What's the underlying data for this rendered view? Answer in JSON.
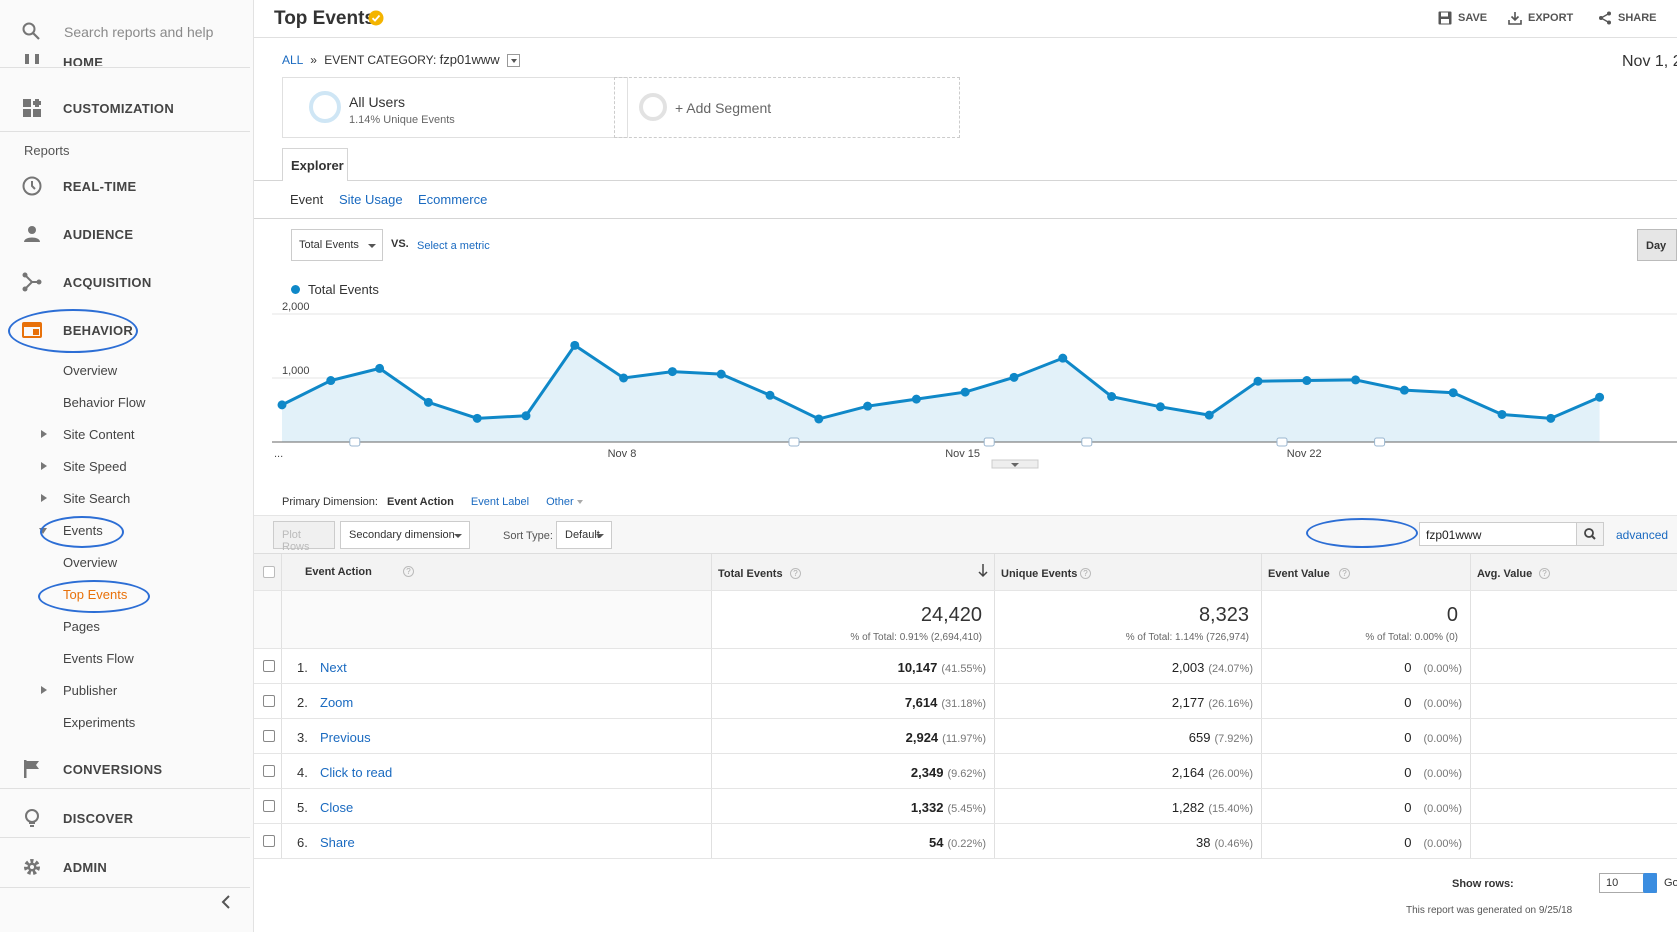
{
  "sidebar": {
    "search_placeholder": "Search reports and help",
    "home": "HOME",
    "customization": "CUSTOMIZATION",
    "reports_label": "Reports",
    "realtime": "REAL-TIME",
    "audience": "AUDIENCE",
    "acquisition": "ACQUISITION",
    "behavior": "BEHAVIOR",
    "behavior_items": {
      "overview": "Overview",
      "behavior_flow": "Behavior Flow",
      "site_content": "Site Content",
      "site_speed": "Site Speed",
      "site_search": "Site Search",
      "events": "Events",
      "events_overview": "Overview",
      "top_events": "Top Events",
      "pages": "Pages",
      "events_flow": "Events Flow",
      "publisher": "Publisher",
      "experiments": "Experiments"
    },
    "conversions": "CONVERSIONS",
    "discover": "DISCOVER",
    "admin": "ADMIN"
  },
  "header": {
    "title": "Top Events",
    "save": "SAVE",
    "export": "EXPORT",
    "share": "SHARE"
  },
  "breadcrumb": {
    "all": "ALL",
    "sep": "»",
    "category": "EVENT CATEGORY:",
    "category_value": "fzp01www"
  },
  "date_range": "Nov 1, 2",
  "segments": {
    "all_users": "All Users",
    "all_users_pct": "1.14% Unique Events",
    "add_segment": "+ Add Segment"
  },
  "tabs": {
    "explorer": "Explorer",
    "sub": [
      "Event",
      "Site Usage",
      "Ecommerce"
    ]
  },
  "controls": {
    "metric": "Total Events",
    "vs": "VS.",
    "select_metric": "Select a metric",
    "day": "Day"
  },
  "chart_data": {
    "type": "line",
    "series": [
      {
        "name": "Total Events",
        "values": [
          580,
          960,
          1150,
          620,
          370,
          410,
          1510,
          1000,
          1100,
          1060,
          730,
          360,
          560,
          670,
          780,
          1010,
          1310,
          710,
          550,
          420,
          950,
          960,
          970,
          810,
          770,
          430,
          370,
          700
        ]
      }
    ],
    "x_tick_labels": [
      "...",
      "Nov 8",
      "Nov 15",
      "Nov 22"
    ],
    "y_tick_labels": [
      "1,000",
      "2,000"
    ],
    "ylim": [
      0,
      2000
    ],
    "color": "#0f88c8"
  },
  "table": {
    "primary_dimension_label": "Primary Dimension:",
    "primary_dimension": "Event Action",
    "alt_dimension": "Event Label",
    "other": "Other",
    "plot_rows": "Plot Rows",
    "secondary_dimension": "Secondary dimension",
    "sort_type_label": "Sort Type:",
    "sort_type": "Default",
    "filter_value": "fzp01www",
    "advanced": "advanced",
    "columns": [
      "Event Action",
      "Total Events",
      "Unique Events",
      "Event Value",
      "Avg. Value"
    ],
    "totals": {
      "total_events": "24,420",
      "total_events_sub": "% of Total: 0.91% (2,694,410)",
      "unique_events": "8,323",
      "unique_events_sub": "% of Total: 1.14% (726,974)",
      "event_value": "0",
      "event_value_sub": "% of Total: 0.00% (0)"
    },
    "rows": [
      {
        "idx": "1.",
        "action": "Next",
        "total": "10,147",
        "total_pct": "(41.55%)",
        "unique": "2,003",
        "unique_pct": "(24.07%)",
        "value": "0",
        "value_pct": "(0.00%)"
      },
      {
        "idx": "2.",
        "action": "Zoom",
        "total": "7,614",
        "total_pct": "(31.18%)",
        "unique": "2,177",
        "unique_pct": "(26.16%)",
        "value": "0",
        "value_pct": "(0.00%)"
      },
      {
        "idx": "3.",
        "action": "Previous",
        "total": "2,924",
        "total_pct": "(11.97%)",
        "unique": "659",
        "unique_pct": "(7.92%)",
        "value": "0",
        "value_pct": "(0.00%)"
      },
      {
        "idx": "4.",
        "action": "Click to read",
        "total": "2,349",
        "total_pct": "(9.62%)",
        "unique": "2,164",
        "unique_pct": "(26.00%)",
        "value": "0",
        "value_pct": "(0.00%)"
      },
      {
        "idx": "5.",
        "action": "Close",
        "total": "1,332",
        "total_pct": "(5.45%)",
        "unique": "1,282",
        "unique_pct": "(15.40%)",
        "value": "0",
        "value_pct": "(0.00%)"
      },
      {
        "idx": "6.",
        "action": "Share",
        "total": "54",
        "total_pct": "(0.22%)",
        "unique": "38",
        "unique_pct": "(0.46%)",
        "value": "0",
        "value_pct": "(0.00%)"
      }
    ],
    "show_rows_label": "Show rows:",
    "show_rows_value": "10",
    "go": "Go",
    "generated": "This report was generated on 9/25/18"
  },
  "colors": {
    "accent": "#e8710a",
    "link": "#1a6ac0",
    "annotation": "#2c6ed5",
    "chart_line": "#0f88c8",
    "chart_fill": "#e2f1f9"
  }
}
